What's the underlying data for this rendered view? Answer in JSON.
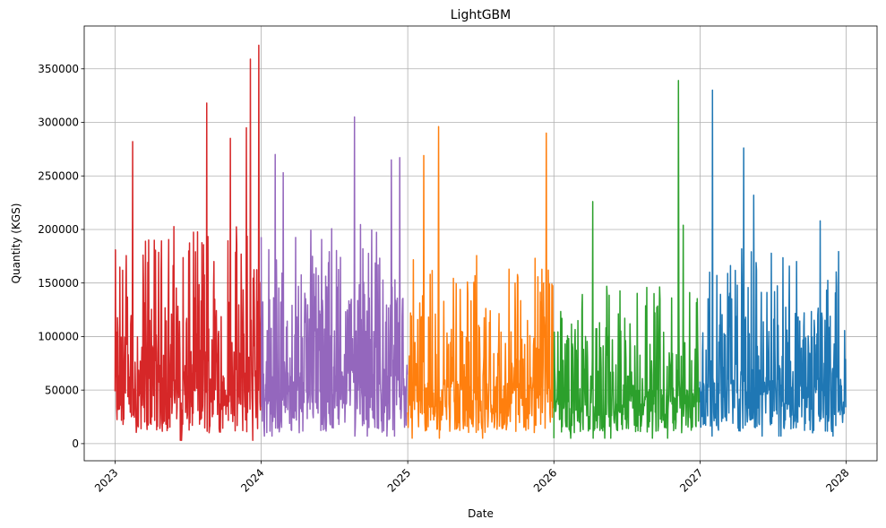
{
  "chart_data": {
    "type": "line",
    "title": "LightGBM",
    "xlabel": "Date",
    "ylabel": "Quantity (KGS)",
    "x_axis": {
      "type": "date",
      "range": [
        "2022-10-16",
        "2028-03-18"
      ],
      "ticks": [
        "2023",
        "2024",
        "2025",
        "2026",
        "2027",
        "2028"
      ],
      "tick_dates": [
        "2023-01-01",
        "2024-01-01",
        "2025-01-01",
        "2026-01-01",
        "2027-01-01",
        "2028-01-01"
      ]
    },
    "y_axis": {
      "range": [
        -16000,
        390000
      ],
      "ticks": [
        0,
        50000,
        100000,
        150000,
        200000,
        250000,
        300000,
        350000
      ],
      "tick_labels": [
        "0",
        "50000",
        "100000",
        "150000",
        "200000",
        "250000",
        "300000",
        "350000"
      ]
    },
    "grid": true,
    "legend": "none",
    "series": [
      {
        "color": "#d62728",
        "start": "2023-01-01",
        "end": "2023-12-31",
        "peaks": [
          {
            "date": "2023-02-14",
            "value": 282000
          },
          {
            "date": "2023-08-18",
            "value": 318000
          },
          {
            "date": "2023-10-16",
            "value": 285000
          },
          {
            "date": "2023-11-25",
            "value": 295000
          },
          {
            "date": "2023-12-05",
            "value": 359000
          },
          {
            "date": "2023-12-26",
            "value": 372000
          }
        ],
        "min": 3000,
        "typical_range": [
          10000,
          180000
        ]
      },
      {
        "color": "#9467bd",
        "start": "2024-01-01",
        "end": "2024-12-31",
        "peaks": [
          {
            "date": "2024-02-05",
            "value": 270000
          },
          {
            "date": "2024-02-25",
            "value": 253000
          },
          {
            "date": "2024-08-21",
            "value": 305000
          },
          {
            "date": "2024-11-21",
            "value": 265000
          },
          {
            "date": "2024-12-12",
            "value": 267000
          }
        ],
        "min": 7000,
        "typical_range": [
          10000,
          180000
        ]
      },
      {
        "color": "#ff7f0e",
        "start": "2025-01-01",
        "end": "2025-12-31",
        "peaks": [
          {
            "date": "2025-02-10",
            "value": 269000
          },
          {
            "date": "2025-03-19",
            "value": 296000
          },
          {
            "date": "2025-12-13",
            "value": 290000
          }
        ],
        "min": 5000,
        "typical_range": [
          10000,
          160000
        ]
      },
      {
        "color": "#2ca02c",
        "start": "2026-01-01",
        "end": "2026-12-31",
        "peaks": [
          {
            "date": "2026-04-08",
            "value": 226000
          },
          {
            "date": "2026-11-08",
            "value": 339000
          },
          {
            "date": "2026-11-20",
            "value": 204000
          }
        ],
        "min": 5000,
        "typical_range": [
          10000,
          130000
        ]
      },
      {
        "color": "#1f77b4",
        "start": "2027-01-01",
        "end": "2027-12-31",
        "peaks": [
          {
            "date": "2027-02-01",
            "value": 330000
          },
          {
            "date": "2027-04-20",
            "value": 276000
          },
          {
            "date": "2027-05-15",
            "value": 232000
          },
          {
            "date": "2027-10-28",
            "value": 208000
          }
        ],
        "min": 7000,
        "typical_range": [
          10000,
          160000
        ]
      }
    ]
  }
}
